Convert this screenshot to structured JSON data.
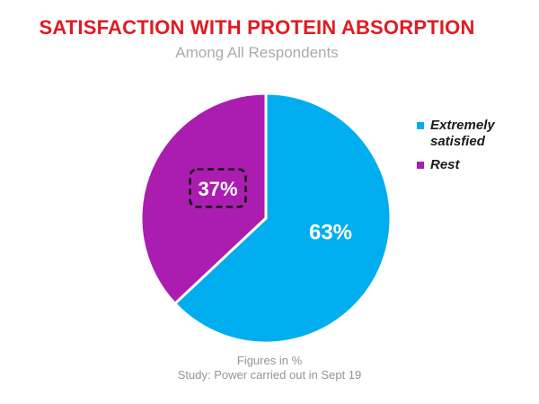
{
  "title": "SATISFACTION WITH PROTEIN ABSORPTION",
  "subtitle": "Among All Respondents",
  "footer": {
    "line1": "Figures in %",
    "line2": "Study: Power carried out in Sept 19"
  },
  "colors": {
    "title_red": "#E01B22",
    "cyan": "#00AEEF",
    "purple": "#AB1DB0",
    "subtitle_gray": "#ABABAB",
    "footer_gray": "#8F959B",
    "highlight_box_stroke": "#141414",
    "data_label_white": "#FFFFFF"
  },
  "chart_data": {
    "type": "pie",
    "title": "SATISFACTION WITH PROTEIN ABSORPTION",
    "subtitle": "Among All Respondents",
    "start_angle_deg": 0,
    "direction": "clockwise",
    "legend_position": "right",
    "slices": [
      {
        "label": "Extremely satisfied",
        "value": 63,
        "data_label": "63%",
        "color": "#00AEEF"
      },
      {
        "label": "Rest",
        "value": 37,
        "data_label": "37%",
        "color": "#AB1DB0",
        "annotation": "dashed-box-highlight"
      }
    ],
    "notes": [
      "Figures in %",
      "Study: Power carried out in Sept 19"
    ]
  }
}
